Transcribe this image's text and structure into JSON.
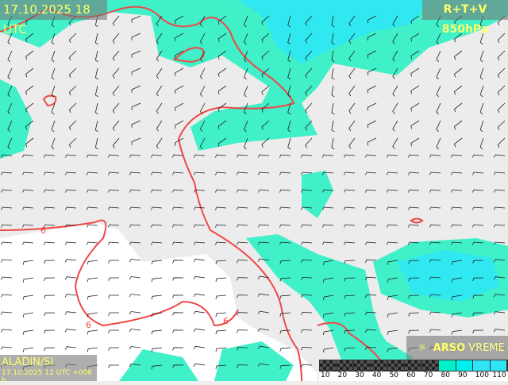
{
  "header": {
    "valid_time": "17.10.2025 18 UTC",
    "parameter": "R+T+V 850hPa"
  },
  "model": {
    "name": "ALADIN/SI",
    "run": "17.10.2025 12 UTC +006 h"
  },
  "logo": {
    "brand": "ARSO",
    "product": "VREME"
  },
  "legend": {
    "labels": [
      "10",
      "20",
      "30",
      "40",
      "50",
      "60",
      "70",
      "80",
      "90",
      "100",
      "110"
    ],
    "colors": [
      "checker",
      "checker",
      "checker",
      "checker",
      "checker",
      "checker",
      "checker",
      "#00f0c8",
      "#00f0f0",
      "#30e4f8",
      "#30e4f8"
    ]
  },
  "contours": {
    "label": "6",
    "color": "#f04848"
  },
  "colors": {
    "humid_80": "#3ff0c8",
    "humid_90": "#30e8f0",
    "land": "#eeeeee",
    "sea": "#ffffff"
  }
}
